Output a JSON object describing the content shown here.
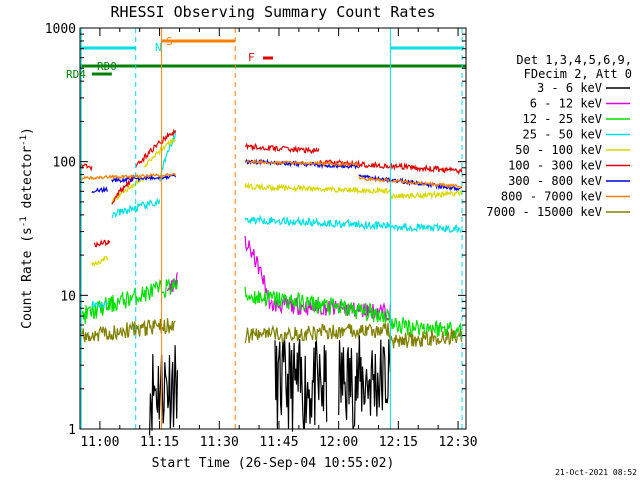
{
  "chart_data": {
    "type": "line",
    "title": "RHESSI Observing Summary Count Rates",
    "xlabel": "Start Time (26-Sep-04 10:55:02)",
    "ylabel_main": "Count Rate (s",
    "ylabel_sup1": "-1",
    "ylabel_mid": " detector",
    "ylabel_sup2": "-1",
    "ylabel_end": ")",
    "yscale": "log",
    "ylim": [
      1,
      1000
    ],
    "xlim": [
      "10:55",
      "12:32"
    ],
    "x_ticks": [
      {
        "t": "11:00",
        "m": 5
      },
      {
        "t": "11:15",
        "m": 20
      },
      {
        "t": "11:30",
        "m": 35
      },
      {
        "t": "11:45",
        "m": 50
      },
      {
        "t": "12:00",
        "m": 65
      },
      {
        "t": "12:15",
        "m": 80
      },
      {
        "t": "12:30",
        "m": 95
      }
    ],
    "y_ticks": [
      {
        "t": "1",
        "v": 1
      },
      {
        "t": "10",
        "v": 10
      },
      {
        "t": "100",
        "v": 100
      },
      {
        "t": "1000",
        "v": 1000
      }
    ],
    "legend_header": [
      "Det 1,3,4,5,6,9,",
      "FDecim 2, Att 0"
    ],
    "series": [
      {
        "name": "3 - 6 keV",
        "color": "#000000"
      },
      {
        "name": "6 - 12 keV",
        "color": "#e000e0"
      },
      {
        "name": "12 - 25 keV",
        "color": "#00e000"
      },
      {
        "name": "25 - 50 keV",
        "color": "#00e0e0"
      },
      {
        "name": "50 - 100 keV",
        "color": "#d8d800"
      },
      {
        "name": "100 - 300 keV",
        "color": "#e00000"
      },
      {
        "name": "300 - 800 keV",
        "color": "#0000e0"
      },
      {
        "name": "800 - 7000 keV",
        "color": "#ff8000"
      },
      {
        "name": "7000 - 15000 keV",
        "color": "#808000"
      }
    ],
    "flags": [
      {
        "label": "N",
        "color": "#00e0e0"
      },
      {
        "label": "S",
        "color": "#ff8000"
      },
      {
        "label": "F",
        "color": "#e00000"
      },
      {
        "label": "RD0",
        "color": "#008000"
      },
      {
        "label": "RD4",
        "color": "#008000"
      }
    ],
    "timestamp": "21-Oct-2021 08:52"
  }
}
